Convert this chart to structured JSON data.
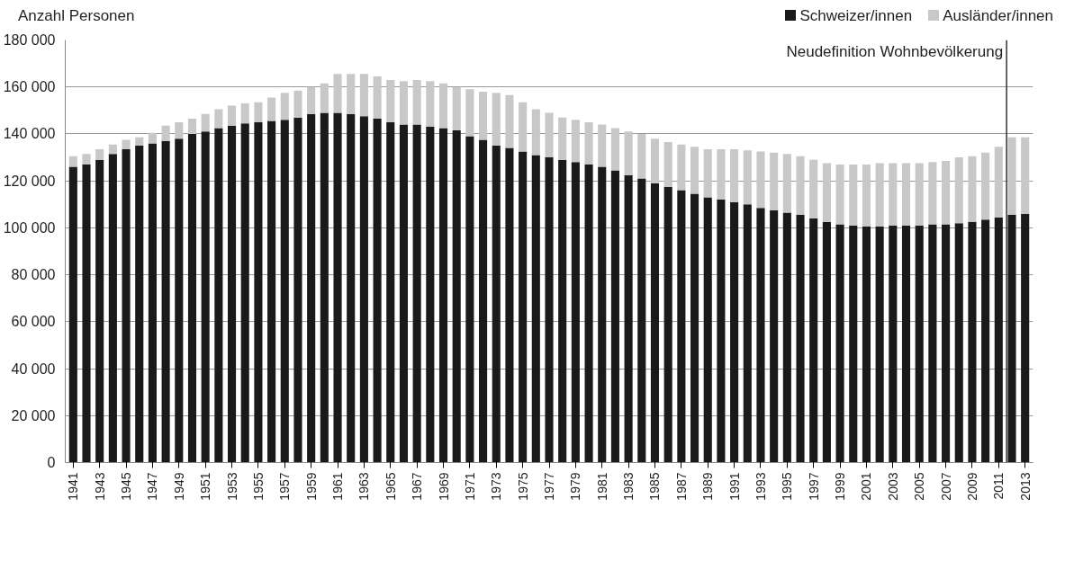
{
  "chart_data": {
    "type": "bar",
    "stacked": true,
    "ylabel": "Anzahl Personen",
    "x": [
      1941,
      1942,
      1943,
      1944,
      1945,
      1946,
      1947,
      1948,
      1949,
      1950,
      1951,
      1952,
      1953,
      1954,
      1955,
      1956,
      1957,
      1958,
      1959,
      1960,
      1961,
      1962,
      1963,
      1964,
      1965,
      1966,
      1967,
      1968,
      1969,
      1970,
      1971,
      1972,
      1973,
      1974,
      1975,
      1976,
      1977,
      1978,
      1979,
      1980,
      1981,
      1982,
      1983,
      1984,
      1985,
      1986,
      1987,
      1988,
      1989,
      1990,
      1991,
      1992,
      1993,
      1994,
      1995,
      1996,
      1997,
      1998,
      1999,
      2000,
      2001,
      2002,
      2003,
      2004,
      2005,
      2006,
      2007,
      2008,
      2009,
      2010,
      2011,
      2012,
      2013
    ],
    "series": [
      {
        "name": "Schweizer/innen",
        "color": "#1a1a1a",
        "values": [
          126000,
          127000,
          129000,
          131500,
          133500,
          135000,
          136000,
          137000,
          138000,
          140000,
          141000,
          142500,
          143500,
          144500,
          145000,
          145500,
          146000,
          147000,
          148500,
          149000,
          149000,
          148500,
          147500,
          146500,
          145000,
          144000,
          144000,
          143000,
          142500,
          141500,
          139000,
          137500,
          135000,
          134000,
          132500,
          131000,
          130000,
          129000,
          128000,
          127000,
          126000,
          124500,
          122500,
          121000,
          119000,
          117500,
          116000,
          114500,
          113000,
          112000,
          111000,
          110000,
          108500,
          107500,
          106500,
          105500,
          104000,
          102500,
          101500,
          101000,
          100500,
          100500,
          101000,
          101000,
          101000,
          101500,
          101500,
          102000,
          102500,
          103500,
          104500,
          105500,
          106000
        ]
      },
      {
        "name": "Ausländer/innen",
        "color": "#c8c8c8",
        "values": [
          4500,
          4500,
          4500,
          4000,
          4000,
          3500,
          4500,
          6500,
          7000,
          6500,
          7500,
          8000,
          8500,
          8500,
          8500,
          10000,
          11500,
          11500,
          11500,
          12500,
          16500,
          17000,
          18000,
          18000,
          18000,
          18500,
          19000,
          19500,
          19000,
          18500,
          20000,
          20500,
          22500,
          22500,
          21000,
          19500,
          19000,
          18000,
          18000,
          18000,
          18000,
          18000,
          18500,
          19000,
          19000,
          19000,
          19500,
          20000,
          20500,
          21500,
          22500,
          23000,
          24000,
          24500,
          25000,
          25000,
          25000,
          25000,
          25500,
          26000,
          26500,
          27000,
          26500,
          26500,
          26500,
          26500,
          27000,
          28000,
          28000,
          28500,
          30000,
          33000,
          32500
        ]
      }
    ],
    "xlim": [
      1940.4,
      2013.6
    ],
    "xticks": [
      1941,
      1943,
      1945,
      1947,
      1949,
      1951,
      1953,
      1955,
      1957,
      1959,
      1961,
      1963,
      1965,
      1967,
      1969,
      1971,
      1973,
      1975,
      1977,
      1979,
      1981,
      1983,
      1985,
      1987,
      1989,
      1991,
      1993,
      1995,
      1997,
      1999,
      2001,
      2003,
      2005,
      2007,
      2009,
      2011,
      2013
    ],
    "ylim": [
      0,
      180000
    ],
    "yticks": [
      {
        "value": 0,
        "label": "0"
      },
      {
        "value": 20000,
        "label": "20 000"
      },
      {
        "value": 40000,
        "label": "40 000"
      },
      {
        "value": 60000,
        "label": "60 000"
      },
      {
        "value": 80000,
        "label": "80 000"
      },
      {
        "value": 100000,
        "label": "100 000"
      },
      {
        "value": 120000,
        "label": "120 000"
      },
      {
        "value": 140000,
        "label": "140 000"
      },
      {
        "value": 160000,
        "label": "160 000"
      },
      {
        "value": 180000,
        "label": "180 000"
      }
    ],
    "ref_lines": [
      {
        "axis": "x",
        "value": 2011.6,
        "label": "Neudefinition Wohnbevölkerung",
        "color": "#333333"
      }
    ],
    "grid": "y",
    "legend": "top right"
  }
}
